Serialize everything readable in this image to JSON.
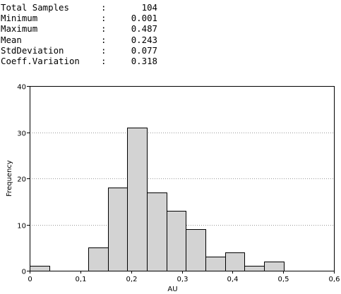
{
  "stats": [
    {
      "label": "Total Samples",
      "value": "104"
    },
    {
      "label": "Minimum",
      "value": "0.001"
    },
    {
      "label": "Maximum",
      "value": "0.487"
    },
    {
      "label": "Mean",
      "value": "0.243"
    },
    {
      "label": "StdDeviation",
      "value": "0.077"
    },
    {
      "label": "Coeff.Variation",
      "value": "0.318"
    }
  ],
  "stat_separator": ":",
  "chart_data": {
    "type": "bar",
    "xlabel": "AU",
    "ylabel": "Frequency",
    "xlim": [
      0,
      0.6
    ],
    "ylim": [
      0,
      40
    ],
    "xticks": [
      0,
      0.1,
      0.2,
      0.3,
      0.4,
      0.5,
      0.6
    ],
    "xtick_labels": [
      "0",
      "0,1",
      "0,2",
      "0,3",
      "0,4",
      "0,5",
      "0,6"
    ],
    "yticks": [
      0,
      10,
      20,
      30,
      40
    ],
    "ytick_labels": [
      "0",
      "10",
      "20",
      "30",
      "40"
    ],
    "bin_width": 0.0385,
    "bins": [
      {
        "x0": 0.0,
        "x1": 0.0385,
        "count": 1
      },
      {
        "x0": 0.1155,
        "x1": 0.154,
        "count": 5
      },
      {
        "x0": 0.154,
        "x1": 0.1925,
        "count": 18
      },
      {
        "x0": 0.1925,
        "x1": 0.231,
        "count": 31
      },
      {
        "x0": 0.231,
        "x1": 0.2695,
        "count": 17
      },
      {
        "x0": 0.2695,
        "x1": 0.308,
        "count": 13
      },
      {
        "x0": 0.308,
        "x1": 0.3465,
        "count": 9
      },
      {
        "x0": 0.3465,
        "x1": 0.385,
        "count": 3
      },
      {
        "x0": 0.385,
        "x1": 0.4235,
        "count": 4
      },
      {
        "x0": 0.4235,
        "x1": 0.462,
        "count": 1
      },
      {
        "x0": 0.462,
        "x1": 0.5005,
        "count": 2
      }
    ],
    "grid": "horizontal-dotted",
    "bar_fill": "#d3d3d3",
    "bar_stroke": "#000000"
  }
}
